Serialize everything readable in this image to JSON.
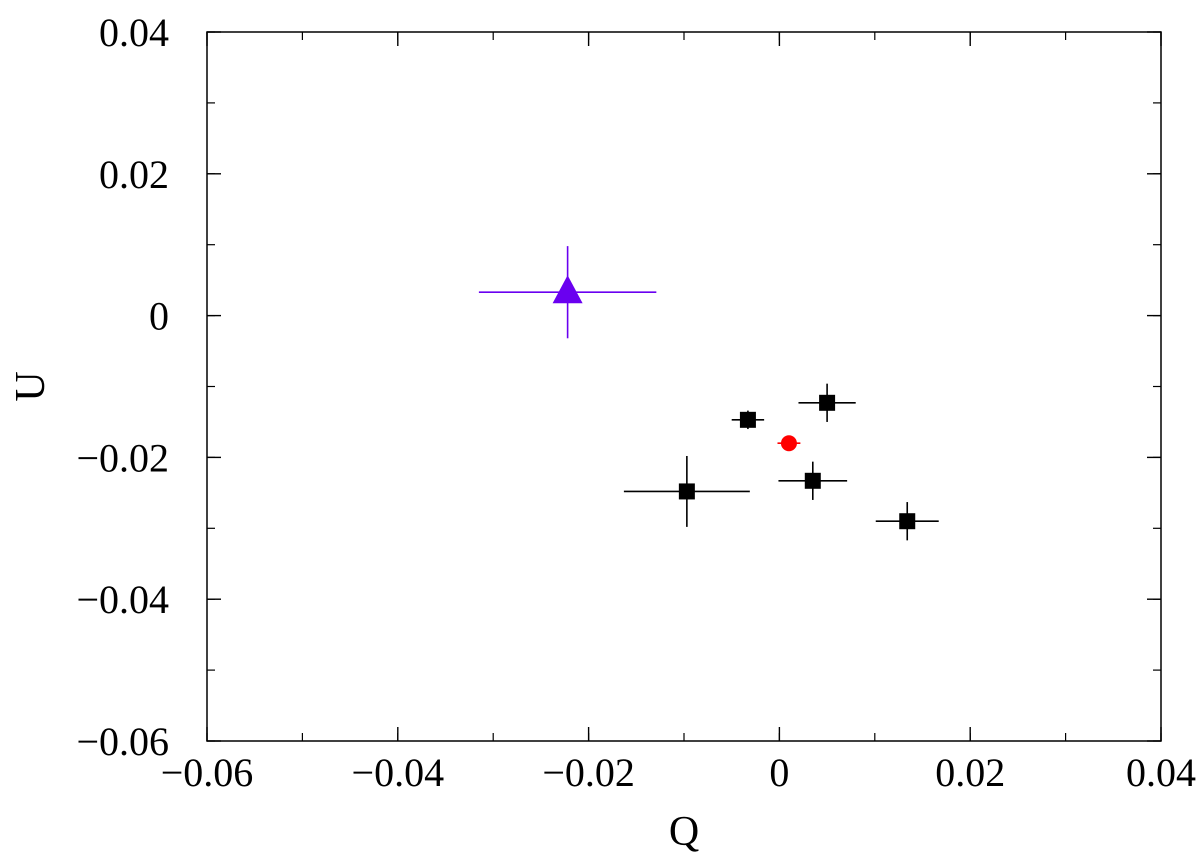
{
  "chart_data": {
    "type": "scatter",
    "xlabel": "Q",
    "ylabel": "U",
    "xlim": [
      -0.06,
      0.04
    ],
    "ylim": [
      -0.06,
      0.04
    ],
    "x_major_ticks": [
      -0.06,
      -0.04,
      -0.02,
      0,
      0.02,
      0.04
    ],
    "y_major_ticks": [
      -0.06,
      -0.04,
      -0.02,
      0,
      0.02,
      0.04
    ],
    "x_tick_labels": [
      "−0.06",
      "−0.04",
      "−0.02",
      "0",
      "0.02",
      "0.04"
    ],
    "y_tick_labels": [
      "−0.06",
      "−0.04",
      "−0.02",
      "0",
      "0.02",
      "0.04"
    ],
    "x_minor_step": 0.01,
    "y_minor_step": 0.01,
    "grid": false,
    "series": [
      {
        "marker": "square",
        "color": "#000000",
        "points": [
          {
            "x": -0.0033,
            "y": -0.0147,
            "xerr": 0.0017,
            "yerr": 0.0013
          },
          {
            "x": 0.005,
            "y": -0.0123,
            "xerr": 0.003,
            "yerr": 0.0027
          },
          {
            "x": -0.0097,
            "y": -0.0248,
            "xerr": 0.0066,
            "yerr": 0.005
          },
          {
            "x": 0.0035,
            "y": -0.0233,
            "xerr": 0.0036,
            "yerr": 0.0027
          },
          {
            "x": 0.0134,
            "y": -0.029,
            "xerr": 0.0033,
            "yerr": 0.0027
          }
        ]
      },
      {
        "marker": "circle",
        "color": "#ff0000",
        "points": [
          {
            "x": 0.001,
            "y": -0.018,
            "xerr": 0.0012,
            "yerr": 0.0007
          }
        ]
      },
      {
        "marker": "triangle",
        "color": "#6a00f0",
        "points": [
          {
            "x": -0.0222,
            "y": 0.0033,
            "xerr": 0.0093,
            "yerr": 0.0065
          }
        ]
      }
    ]
  }
}
